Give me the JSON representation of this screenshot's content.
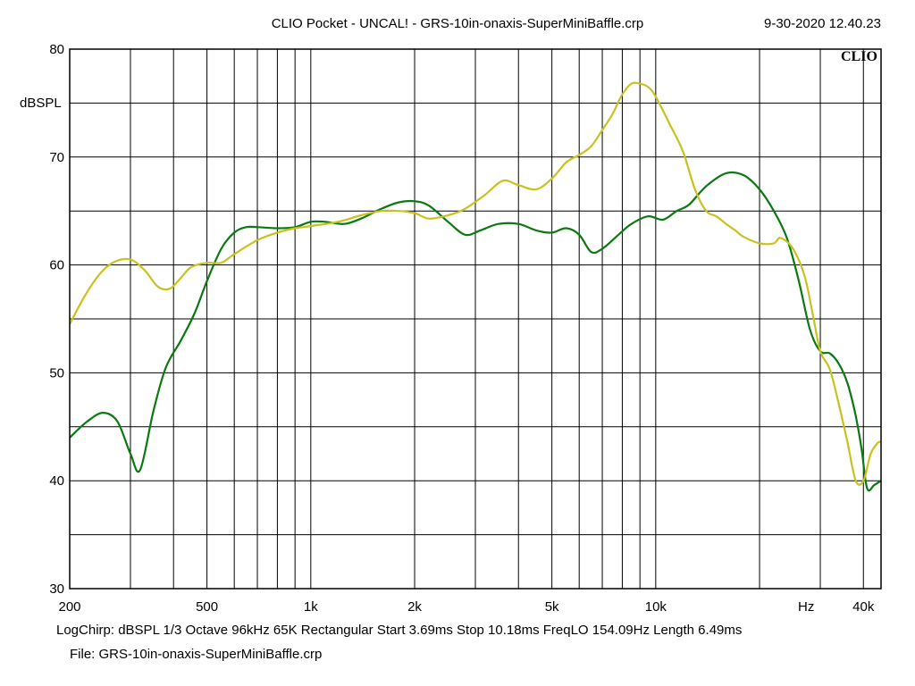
{
  "header": {
    "title": "CLIO Pocket - UNCAL! - GRS-10in-onaxis-SuperMiniBaffle.crp",
    "date": "9-30-2020 12.40.23"
  },
  "footer": {
    "info": "LogChirp:  dBSPL   1/3 Octave   96kHz   65K   Rectangular   Start 3.69ms    Stop 10.18ms    FreqLO 154.09Hz    Length 6.49ms",
    "file": "File: GRS-10in-onaxis-SuperMiniBaffle.crp"
  },
  "chart_data": {
    "type": "line",
    "title": "CLIO Pocket - UNCAL! - GRS-10in-onaxis-SuperMiniBaffle.crp",
    "brand": "CLIO",
    "ylabel": "dBSPL",
    "xlabel": "Hz",
    "xscale": "log",
    "xlim": [
      200,
      45000
    ],
    "ylim": [
      30,
      80
    ],
    "grid": true,
    "x_tick_labels": [
      {
        "value": 200,
        "label": "200"
      },
      {
        "value": 500,
        "label": "500"
      },
      {
        "value": 1000,
        "label": "1k"
      },
      {
        "value": 2000,
        "label": "2k"
      },
      {
        "value": 5000,
        "label": "5k"
      },
      {
        "value": 10000,
        "label": "10k"
      },
      {
        "value": 40000,
        "label": "40k"
      }
    ],
    "y_tick_labels": [
      {
        "value": 30,
        "label": "30"
      },
      {
        "value": 40,
        "label": "40"
      },
      {
        "value": 50,
        "label": "50"
      },
      {
        "value": 60,
        "label": "60"
      },
      {
        "value": 70,
        "label": "70"
      },
      {
        "value": 80,
        "label": "80"
      }
    ],
    "series": [
      {
        "name": "green",
        "color": "#0a7a10",
        "points": [
          [
            200,
            44.0
          ],
          [
            225,
            45.5
          ],
          [
            250,
            46.3
          ],
          [
            275,
            45.5
          ],
          [
            300,
            42.5
          ],
          [
            320,
            41.0
          ],
          [
            350,
            46.5
          ],
          [
            380,
            50.5
          ],
          [
            420,
            53.0
          ],
          [
            460,
            55.5
          ],
          [
            500,
            58.5
          ],
          [
            550,
            61.5
          ],
          [
            600,
            63.0
          ],
          [
            650,
            63.5
          ],
          [
            700,
            63.5
          ],
          [
            800,
            63.4
          ],
          [
            900,
            63.5
          ],
          [
            1000,
            64.0
          ],
          [
            1100,
            64.0
          ],
          [
            1250,
            63.8
          ],
          [
            1400,
            64.3
          ],
          [
            1600,
            65.2
          ],
          [
            1800,
            65.8
          ],
          [
            2000,
            65.9
          ],
          [
            2200,
            65.5
          ],
          [
            2500,
            64.0
          ],
          [
            2800,
            62.8
          ],
          [
            3100,
            63.2
          ],
          [
            3500,
            63.8
          ],
          [
            4000,
            63.8
          ],
          [
            4500,
            63.2
          ],
          [
            5000,
            63.0
          ],
          [
            5500,
            63.4
          ],
          [
            6000,
            62.8
          ],
          [
            6500,
            61.2
          ],
          [
            7000,
            61.5
          ],
          [
            7800,
            62.8
          ],
          [
            8500,
            63.8
          ],
          [
            9500,
            64.5
          ],
          [
            10500,
            64.2
          ],
          [
            11500,
            65.0
          ],
          [
            12500,
            65.6
          ],
          [
            14000,
            67.3
          ],
          [
            16000,
            68.5
          ],
          [
            18000,
            68.3
          ],
          [
            20000,
            67.0
          ],
          [
            22000,
            65.0
          ],
          [
            24000,
            62.5
          ],
          [
            26000,
            58.5
          ],
          [
            28000,
            54.0
          ],
          [
            30000,
            52.0
          ],
          [
            32000,
            51.8
          ],
          [
            34000,
            50.8
          ],
          [
            36000,
            49.0
          ],
          [
            38000,
            46.0
          ],
          [
            39500,
            43.0
          ],
          [
            41000,
            39.3
          ],
          [
            43000,
            39.6
          ],
          [
            45000,
            40.0
          ]
        ]
      },
      {
        "name": "yellow",
        "color": "#c8c21e",
        "points": [
          [
            200,
            54.5
          ],
          [
            220,
            57.0
          ],
          [
            245,
            59.2
          ],
          [
            270,
            60.3
          ],
          [
            300,
            60.5
          ],
          [
            330,
            59.5
          ],
          [
            360,
            58.0
          ],
          [
            390,
            57.8
          ],
          [
            420,
            58.8
          ],
          [
            450,
            59.8
          ],
          [
            500,
            60.2
          ],
          [
            550,
            60.2
          ],
          [
            600,
            61.0
          ],
          [
            700,
            62.3
          ],
          [
            800,
            63.0
          ],
          [
            900,
            63.4
          ],
          [
            1000,
            63.6
          ],
          [
            1200,
            64.0
          ],
          [
            1400,
            64.6
          ],
          [
            1600,
            65.0
          ],
          [
            1800,
            65.0
          ],
          [
            2000,
            64.8
          ],
          [
            2200,
            64.3
          ],
          [
            2500,
            64.6
          ],
          [
            2800,
            65.2
          ],
          [
            3200,
            66.5
          ],
          [
            3600,
            67.8
          ],
          [
            4000,
            67.4
          ],
          [
            4500,
            67.0
          ],
          [
            5000,
            68.0
          ],
          [
            5500,
            69.5
          ],
          [
            6000,
            70.2
          ],
          [
            6500,
            71.0
          ],
          [
            7000,
            72.5
          ],
          [
            7500,
            74.0
          ],
          [
            8000,
            75.8
          ],
          [
            8500,
            76.8
          ],
          [
            9000,
            76.8
          ],
          [
            9500,
            76.5
          ],
          [
            10000,
            75.6
          ],
          [
            11000,
            73.0
          ],
          [
            12000,
            70.5
          ],
          [
            13000,
            67.0
          ],
          [
            14000,
            65.0
          ],
          [
            15000,
            64.5
          ],
          [
            16000,
            63.8
          ],
          [
            17000,
            63.2
          ],
          [
            18000,
            62.6
          ],
          [
            20000,
            62.0
          ],
          [
            22000,
            62.0
          ],
          [
            23000,
            62.5
          ],
          [
            25000,
            61.5
          ],
          [
            27000,
            59.0
          ],
          [
            28500,
            55.5
          ],
          [
            30000,
            52.0
          ],
          [
            32000,
            50.3
          ],
          [
            34000,
            47.0
          ],
          [
            36000,
            43.5
          ],
          [
            38000,
            40.0
          ],
          [
            40000,
            40.0
          ],
          [
            42000,
            42.5
          ],
          [
            44000,
            43.5
          ],
          [
            45000,
            43.6
          ]
        ]
      }
    ]
  }
}
